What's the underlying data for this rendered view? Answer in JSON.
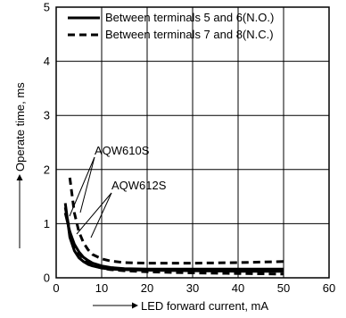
{
  "chart_data": {
    "type": "line",
    "xlabel": "LED forward current, mA",
    "ylabel": "Operate time, ms",
    "xlim": [
      0,
      60
    ],
    "ylim": [
      0,
      5
    ],
    "xticks": [
      "0",
      "10",
      "20",
      "30",
      "40",
      "50",
      "60"
    ],
    "yticks": [
      "0",
      "1",
      "2",
      "3",
      "4",
      "5"
    ],
    "grid": true,
    "legend_position": "top-right",
    "legend": [
      {
        "label": "Between terminals 5 and 6(N.O.)",
        "style": "solid"
      },
      {
        "label": "Between terminals 7 and 8(N.C.)",
        "style": "dashed"
      }
    ],
    "annotations": [
      "AQW610S",
      "AQW612S"
    ],
    "series": [
      {
        "style": "solid",
        "x": [
          2,
          3,
          4,
          5,
          6,
          7,
          8,
          10,
          12,
          15,
          20,
          30,
          40,
          50
        ],
        "y": [
          1.38,
          0.75,
          0.5,
          0.37,
          0.3,
          0.25,
          0.22,
          0.18,
          0.16,
          0.15,
          0.14,
          0.13,
          0.12,
          0.12
        ]
      },
      {
        "style": "solid",
        "x": [
          2,
          3,
          4,
          5,
          6,
          7,
          8,
          10,
          12,
          15,
          20,
          30,
          40,
          50
        ],
        "y": [
          1.2,
          0.85,
          0.62,
          0.48,
          0.38,
          0.32,
          0.27,
          0.22,
          0.19,
          0.17,
          0.16,
          0.16,
          0.16,
          0.16
        ]
      },
      {
        "style": "dashed",
        "x": [
          3,
          4,
          5,
          6,
          7,
          8,
          10,
          12,
          15,
          20,
          30,
          40,
          50
        ],
        "y": [
          1.85,
          1.2,
          0.85,
          0.65,
          0.52,
          0.43,
          0.35,
          0.31,
          0.28,
          0.27,
          0.27,
          0.28,
          0.3
        ]
      },
      {
        "style": "dashed",
        "x": [
          2,
          3,
          4,
          5,
          6,
          7,
          8,
          10,
          12,
          15,
          20,
          30,
          40,
          50
        ],
        "y": [
          1.3,
          0.85,
          0.6,
          0.45,
          0.35,
          0.28,
          0.23,
          0.18,
          0.15,
          0.13,
          0.11,
          0.09,
          0.08,
          0.07
        ]
      }
    ]
  }
}
